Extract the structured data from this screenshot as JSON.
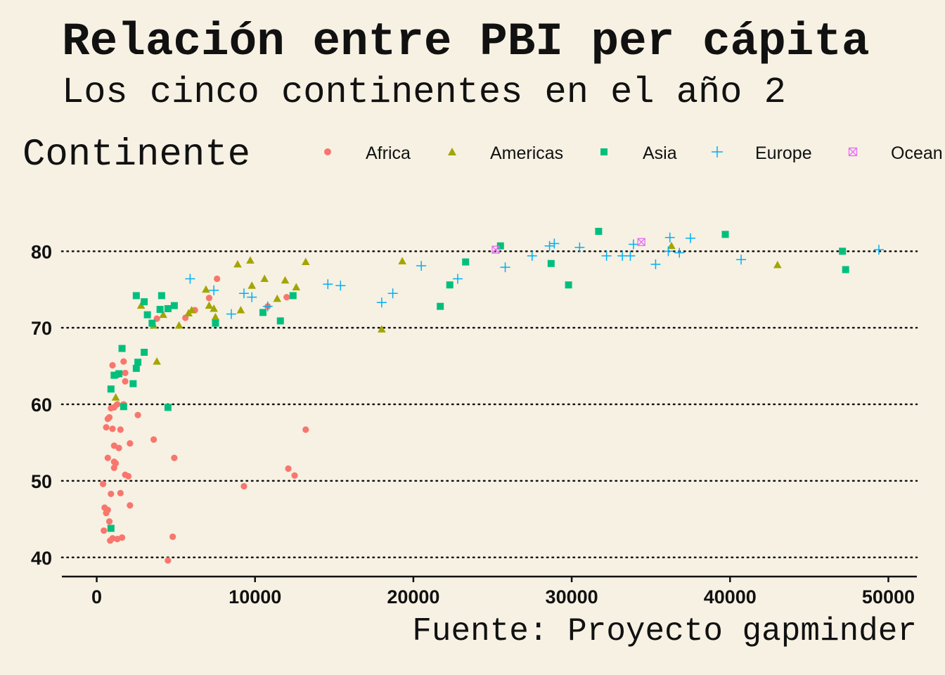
{
  "title": "Relación entre PBI per cápita",
  "subtitle": "Los cinco continentes en el año 2",
  "legend": {
    "title": "Continente",
    "entries": [
      {
        "name": "Africa",
        "color": "#f8766d",
        "shape": "circle"
      },
      {
        "name": "Americas",
        "color": "#a3a500",
        "shape": "triangle"
      },
      {
        "name": "Asia",
        "color": "#00bf7d",
        "shape": "square"
      },
      {
        "name": "Europe",
        "color": "#00b0f6",
        "shape": "plus"
      },
      {
        "name": "Ocean",
        "color": "#e76bf3",
        "shape": "square-cross"
      }
    ]
  },
  "caption": "Fuente: Proyecto gapminder",
  "chart_data": {
    "type": "scatter",
    "title": "Relación entre PBI per cápita",
    "subtitle": "Los cinco continentes en el año 2",
    "xlabel": "",
    "ylabel": "",
    "xlim": [
      -2200,
      51800
    ],
    "ylim": [
      37.5,
      86
    ],
    "x_ticks": [
      0,
      10000,
      20000,
      30000,
      40000,
      50000
    ],
    "y_ticks": [
      40,
      50,
      60,
      70,
      80
    ],
    "grid": "horizontal dotted",
    "legend_position": "top",
    "series": [
      {
        "name": "Africa",
        "points": [
          [
            500,
            46.5
          ],
          [
            700,
            46.2
          ],
          [
            900,
            48.3
          ],
          [
            400,
            49.6
          ],
          [
            600,
            45.8
          ],
          [
            800,
            44.7
          ],
          [
            450,
            43.5
          ],
          [
            850,
            42.2
          ],
          [
            1000,
            42.5
          ],
          [
            1300,
            42.4
          ],
          [
            1600,
            42.6
          ],
          [
            4500,
            39.6
          ],
          [
            4800,
            42.7
          ],
          [
            900,
            59.5
          ],
          [
            1100,
            59.6
          ],
          [
            1300,
            60.0
          ],
          [
            700,
            58.1
          ],
          [
            800,
            58.3
          ],
          [
            600,
            57.0
          ],
          [
            1000,
            56.8
          ],
          [
            1500,
            56.7
          ],
          [
            1700,
            60.0
          ],
          [
            2100,
            54.9
          ],
          [
            1100,
            54.6
          ],
          [
            1400,
            54.3
          ],
          [
            700,
            53.0
          ],
          [
            1100,
            52.5
          ],
          [
            1200,
            52.3
          ],
          [
            1100,
            51.7
          ],
          [
            1800,
            50.8
          ],
          [
            2000,
            50.6
          ],
          [
            2100,
            46.8
          ],
          [
            1500,
            48.4
          ],
          [
            3600,
            55.4
          ],
          [
            4900,
            53.0
          ],
          [
            1000,
            65.1
          ],
          [
            1700,
            65.6
          ],
          [
            1800,
            64.1
          ],
          [
            1800,
            63.0
          ],
          [
            1300,
            63.8
          ],
          [
            2600,
            58.6
          ],
          [
            9300,
            49.3
          ],
          [
            12100,
            51.6
          ],
          [
            12500,
            50.7
          ],
          [
            13200,
            56.7
          ],
          [
            3800,
            71.2
          ],
          [
            5600,
            71.3
          ],
          [
            6200,
            72.3
          ],
          [
            7100,
            73.9
          ],
          [
            7600,
            76.4
          ],
          [
            10800,
            72.8
          ],
          [
            12000,
            74.0
          ]
        ]
      },
      {
        "name": "Americas",
        "points": [
          [
            1200,
            60.9
          ],
          [
            3800,
            65.6
          ],
          [
            3600,
            70.3
          ],
          [
            5200,
            70.3
          ],
          [
            2800,
            72.9
          ],
          [
            4200,
            71.7
          ],
          [
            5800,
            71.9
          ],
          [
            6000,
            72.3
          ],
          [
            6900,
            75.0
          ],
          [
            7100,
            72.9
          ],
          [
            7400,
            72.5
          ],
          [
            7500,
            71.4
          ],
          [
            8900,
            78.3
          ],
          [
            9100,
            72.3
          ],
          [
            9700,
            78.8
          ],
          [
            9800,
            75.5
          ],
          [
            10600,
            76.4
          ],
          [
            11400,
            73.8
          ],
          [
            11900,
            76.2
          ],
          [
            12600,
            75.3
          ],
          [
            13200,
            78.6
          ],
          [
            18000,
            69.8
          ],
          [
            19300,
            78.7
          ],
          [
            36300,
            80.7
          ],
          [
            43000,
            78.2
          ]
        ]
      },
      {
        "name": "Asia",
        "points": [
          [
            900,
            43.8
          ],
          [
            900,
            62.0
          ],
          [
            1100,
            63.8
          ],
          [
            1400,
            64.0
          ],
          [
            1600,
            67.3
          ],
          [
            1700,
            59.7
          ],
          [
            2300,
            62.7
          ],
          [
            2500,
            64.7
          ],
          [
            2600,
            65.5
          ],
          [
            3000,
            66.8
          ],
          [
            2500,
            74.2
          ],
          [
            3000,
            73.4
          ],
          [
            3200,
            71.7
          ],
          [
            3500,
            70.6
          ],
          [
            4000,
            72.4
          ],
          [
            4100,
            74.2
          ],
          [
            4500,
            72.5
          ],
          [
            4900,
            72.9
          ],
          [
            4500,
            59.6
          ],
          [
            7500,
            70.6
          ],
          [
            10500,
            72.0
          ],
          [
            11600,
            70.9
          ],
          [
            12400,
            74.2
          ],
          [
            21700,
            72.8
          ],
          [
            22300,
            75.6
          ],
          [
            23300,
            78.6
          ],
          [
            25500,
            80.7
          ],
          [
            28700,
            78.4
          ],
          [
            29800,
            75.6
          ],
          [
            31700,
            82.6
          ],
          [
            39700,
            82.2
          ],
          [
            47100,
            80.0
          ],
          [
            47300,
            77.6
          ]
        ]
      },
      {
        "name": "Europe",
        "points": [
          [
            5900,
            76.4
          ],
          [
            7400,
            74.9
          ],
          [
            8500,
            71.8
          ],
          [
            9300,
            74.5
          ],
          [
            9800,
            74.0
          ],
          [
            10800,
            72.8
          ],
          [
            14600,
            75.7
          ],
          [
            15400,
            75.5
          ],
          [
            18000,
            73.3
          ],
          [
            18700,
            74.5
          ],
          [
            20500,
            78.1
          ],
          [
            22800,
            76.4
          ],
          [
            25800,
            77.9
          ],
          [
            27500,
            79.4
          ],
          [
            28600,
            80.7
          ],
          [
            28900,
            81.0
          ],
          [
            30500,
            80.5
          ],
          [
            32200,
            79.4
          ],
          [
            33200,
            79.4
          ],
          [
            33700,
            79.4
          ],
          [
            33900,
            80.9
          ],
          [
            35300,
            78.3
          ],
          [
            36100,
            80.0
          ],
          [
            36200,
            81.8
          ],
          [
            36800,
            79.8
          ],
          [
            37500,
            81.7
          ],
          [
            40700,
            78.9
          ],
          [
            49400,
            80.2
          ]
        ]
      },
      {
        "name": "Ocean",
        "points": [
          [
            25200,
            80.2
          ],
          [
            34400,
            81.2
          ]
        ]
      }
    ]
  }
}
